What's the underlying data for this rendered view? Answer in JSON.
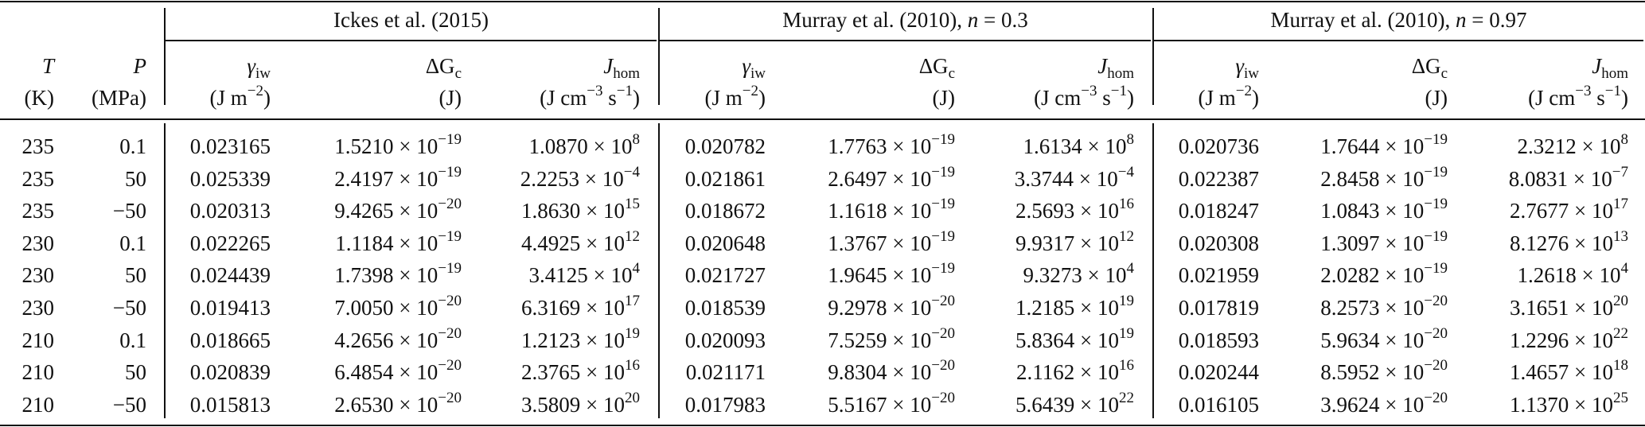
{
  "groups": [
    {
      "author": "Ickes et al. (2015)",
      "n_label": "",
      "n_value": ""
    },
    {
      "author": "Murray et al. (2010),",
      "n_label": "n",
      "n_value": " = 0.3"
    },
    {
      "author": "Murray et al. (2010),",
      "n_label": "n",
      "n_value": " = 0.97"
    }
  ],
  "headers": {
    "T": "T",
    "T_unit": "(K)",
    "P": "P",
    "P_unit": "(MPa)",
    "gamma": "γ",
    "gamma_sub": "iw",
    "gamma_unit": "(J m",
    "gamma_exp": "−2",
    "gamma_close": ")",
    "dG": "ΔG",
    "dG_sub": "c",
    "dG_unit": "(J)",
    "J": "J",
    "J_sub": "hom",
    "J_unit_a": "(J cm",
    "J_exp_a": "−3",
    "J_unit_b": " s",
    "J_exp_b": "−1",
    "J_close": ")"
  },
  "rows": [
    {
      "T": "235",
      "P": "0.1",
      "g1": "0.023165",
      "dg1_m": "1.5210 × 10",
      "dg1_e": "−19",
      "j1_m": "1.0870 × 10",
      "j1_e": "8",
      "g2": "0.020782",
      "dg2_m": "1.7763 × 10",
      "dg2_e": "−19",
      "j2_m": "1.6134 × 10",
      "j2_e": "8",
      "g3": "0.020736",
      "dg3_m": "1.7644 × 10",
      "dg3_e": "−19",
      "j3_m": "2.3212 × 10",
      "j3_e": "8"
    },
    {
      "T": "235",
      "P": "50",
      "g1": "0.025339",
      "dg1_m": "2.4197 × 10",
      "dg1_e": "−19",
      "j1_m": "2.2253 × 10",
      "j1_e": "−4",
      "g2": "0.021861",
      "dg2_m": "2.6497 × 10",
      "dg2_e": "−19",
      "j2_m": "3.3744 × 10",
      "j2_e": "−4",
      "g3": "0.022387",
      "dg3_m": "2.8458 × 10",
      "dg3_e": "−19",
      "j3_m": "8.0831 × 10",
      "j3_e": "−7"
    },
    {
      "T": "235",
      "P": "−50",
      "g1": "0.020313",
      "dg1_m": "9.4265 × 10",
      "dg1_e": "−20",
      "j1_m": "1.8630 × 10",
      "j1_e": "15",
      "g2": "0.018672",
      "dg2_m": "1.1618 × 10",
      "dg2_e": "−19",
      "j2_m": "2.5693 × 10",
      "j2_e": "16",
      "g3": "0.018247",
      "dg3_m": "1.0843 × 10",
      "dg3_e": "−19",
      "j3_m": "2.7677 × 10",
      "j3_e": "17"
    },
    {
      "T": "230",
      "P": "0.1",
      "g1": "0.022265",
      "dg1_m": "1.1184 × 10",
      "dg1_e": "−19",
      "j1_m": "4.4925 × 10",
      "j1_e": "12",
      "g2": "0.020648",
      "dg2_m": "1.3767 × 10",
      "dg2_e": "−19",
      "j2_m": "9.9317 × 10",
      "j2_e": "12",
      "g3": "0.020308",
      "dg3_m": "1.3097 × 10",
      "dg3_e": "−19",
      "j3_m": "8.1276 × 10",
      "j3_e": "13"
    },
    {
      "T": "230",
      "P": "50",
      "g1": "0.024439",
      "dg1_m": "1.7398 × 10",
      "dg1_e": "−19",
      "j1_m": "3.4125 × 10",
      "j1_e": "4",
      "g2": "0.021727",
      "dg2_m": "1.9645 × 10",
      "dg2_e": "−19",
      "j2_m": "9.3273 × 10",
      "j2_e": "4",
      "g3": "0.021959",
      "dg3_m": "2.0282 × 10",
      "dg3_e": "−19",
      "j3_m": "1.2618 × 10",
      "j3_e": "4"
    },
    {
      "T": "230",
      "P": "−50",
      "g1": "0.019413",
      "dg1_m": "7.0050 × 10",
      "dg1_e": "−20",
      "j1_m": "6.3169 × 10",
      "j1_e": "17",
      "g2": "0.018539",
      "dg2_m": "9.2978 × 10",
      "dg2_e": "−20",
      "j2_m": "1.2185 × 10",
      "j2_e": "19",
      "g3": "0.017819",
      "dg3_m": "8.2573 × 10",
      "dg3_e": "−20",
      "j3_m": "3.1651 × 10",
      "j3_e": "20"
    },
    {
      "T": "210",
      "P": "0.1",
      "g1": "0.018665",
      "dg1_m": "4.2656 × 10",
      "dg1_e": "−20",
      "j1_m": "1.2123 × 10",
      "j1_e": "19",
      "g2": "0.020093",
      "dg2_m": "7.5259 × 10",
      "dg2_e": "−20",
      "j2_m": "5.8364 × 10",
      "j2_e": "19",
      "g3": "0.018593",
      "dg3_m": "5.9634 × 10",
      "dg3_e": "−20",
      "j3_m": "1.2296 × 10",
      "j3_e": "22"
    },
    {
      "T": "210",
      "P": "50",
      "g1": "0.020839",
      "dg1_m": "6.4854 × 10",
      "dg1_e": "−20",
      "j1_m": "2.3765 × 10",
      "j1_e": "16",
      "g2": "0.021171",
      "dg2_m": "9.8304 × 10",
      "dg2_e": "−20",
      "j2_m": "2.1162 × 10",
      "j2_e": "16",
      "g3": "0.020244",
      "dg3_m": "8.5952 × 10",
      "dg3_e": "−20",
      "j3_m": "1.4657 × 10",
      "j3_e": "18"
    },
    {
      "T": "210",
      "P": "−50",
      "g1": "0.015813",
      "dg1_m": "2.6530 × 10",
      "dg1_e": "−20",
      "j1_m": "3.5809 × 10",
      "j1_e": "20",
      "g2": "0.017983",
      "dg2_m": "5.5167 × 10",
      "dg2_e": "−20",
      "j2_m": "5.6439 × 10",
      "j2_e": "22",
      "g3": "0.016105",
      "dg3_m": "3.9624 × 10",
      "dg3_e": "−20",
      "j3_m": "1.1370 × 10",
      "j3_e": "25"
    }
  ]
}
